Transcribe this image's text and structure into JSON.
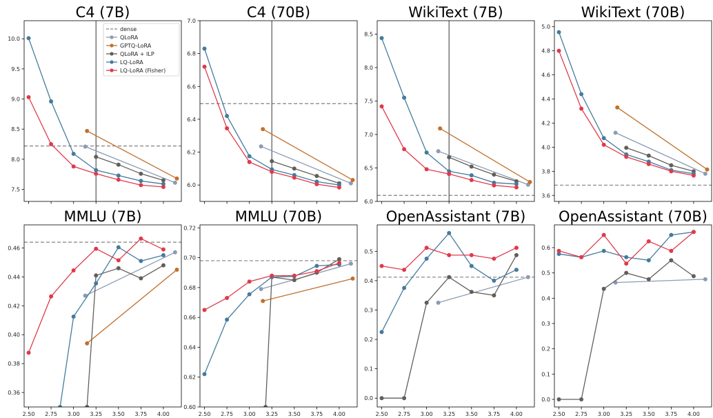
{
  "colors": {
    "dense": "#808080",
    "QLoRA": "#8b9bb4",
    "GPTQ-LoRA": "#c0712e",
    "QLoRA + ILP": "#625f5a",
    "LQ-LoRA": "#457b9d",
    "LQ-LoRA (Fisher)": "#e03a4b",
    "vline": "#555555"
  },
  "legend": [
    "dense",
    "QLoRA",
    "GPTQ-LoRA",
    "QLoRA + ILP",
    "LQ-LoRA",
    "LQ-LoRA (Fisher)"
  ],
  "x_tick_labels": [
    "2.50",
    "2.75",
    "3.00",
    "3.25",
    "3.50",
    "3.75",
    "4.00"
  ],
  "chart_data": [
    {
      "type": "line",
      "title": "C4 (7B)",
      "xlim": [
        2.45,
        4.2
      ],
      "ylim": [
        7.3,
        10.3
      ],
      "yticks": [
        7.5,
        8.0,
        8.5,
        9.0,
        9.5,
        10.0
      ],
      "ytick_labels": [
        "7.5",
        "8.0",
        "8.5",
        "9.0",
        "9.5",
        "10.0"
      ],
      "show_xticklabels": false,
      "dense": 8.22,
      "vline": 3.25,
      "legend": "top-right",
      "series": [
        {
          "name": "QLoRA",
          "x": [
            3.13,
            4.13
          ],
          "y": [
            8.21,
            7.61
          ]
        },
        {
          "name": "GPTQ-LoRA",
          "x": [
            3.15,
            4.15
          ],
          "y": [
            8.47,
            7.68
          ]
        },
        {
          "name": "QLoRA + ILP",
          "x": [
            3.25,
            3.5,
            3.75,
            4.0
          ],
          "y": [
            8.04,
            7.91,
            7.76,
            7.65
          ]
        },
        {
          "name": "LQ-LoRA",
          "x": [
            2.5,
            2.75,
            3.0,
            3.25,
            3.5,
            3.75,
            4.0
          ],
          "y": [
            10.01,
            8.96,
            8.09,
            7.82,
            7.73,
            7.64,
            7.59
          ]
        },
        {
          "name": "LQ-LoRA (Fisher)",
          "x": [
            2.5,
            2.75,
            3.0,
            3.25,
            3.5,
            3.75,
            4.0
          ],
          "y": [
            9.03,
            8.25,
            7.88,
            7.76,
            7.66,
            7.57,
            7.54
          ]
        }
      ]
    },
    {
      "type": "line",
      "title": "C4 (70B)",
      "xlim": [
        2.45,
        4.2
      ],
      "ylim": [
        5.9,
        7.0
      ],
      "yticks": [
        6.0,
        6.2,
        6.4,
        6.6,
        6.8,
        7.0
      ],
      "ytick_labels": [
        "6.0",
        "6.2",
        "6.4",
        "6.6",
        "6.8",
        "7.0"
      ],
      "show_xticklabels": false,
      "dense": 6.495,
      "vline": 3.25,
      "series": [
        {
          "name": "QLoRA",
          "x": [
            3.13,
            4.13
          ],
          "y": [
            6.235,
            6.01
          ]
        },
        {
          "name": "GPTQ-LoRA",
          "x": [
            3.15,
            4.15
          ],
          "y": [
            6.34,
            6.03
          ]
        },
        {
          "name": "QLoRA + ILP",
          "x": [
            3.25,
            3.5,
            3.75,
            4.0
          ],
          "y": [
            6.145,
            6.1,
            6.055,
            6.01
          ]
        },
        {
          "name": "LQ-LoRA",
          "x": [
            2.5,
            2.75,
            3.0,
            3.25,
            3.5,
            3.75,
            4.0
          ],
          "y": [
            6.83,
            6.42,
            6.175,
            6.095,
            6.06,
            6.02,
            6.0
          ]
        },
        {
          "name": "LQ-LoRA (Fisher)",
          "x": [
            2.5,
            2.75,
            3.0,
            3.25,
            3.5,
            3.75,
            4.0
          ],
          "y": [
            6.72,
            6.345,
            6.14,
            6.08,
            6.045,
            6.005,
            5.985
          ]
        }
      ]
    },
    {
      "type": "line",
      "title": "WikiText (7B)",
      "xlim": [
        2.45,
        4.2
      ],
      "ylim": [
        6.0,
        8.7
      ],
      "yticks": [
        6.0,
        6.5,
        7.0,
        7.5,
        8.0,
        8.5
      ],
      "ytick_labels": [
        "6.0",
        "6.5",
        "7.0",
        "7.5",
        "8.0",
        "8.5"
      ],
      "show_xticklabels": false,
      "dense": 6.09,
      "vline": 3.25,
      "series": [
        {
          "name": "QLoRA",
          "x": [
            3.13,
            4.13
          ],
          "y": [
            6.75,
            6.25
          ]
        },
        {
          "name": "GPTQ-LoRA",
          "x": [
            3.15,
            4.15
          ],
          "y": [
            7.09,
            6.29
          ]
        },
        {
          "name": "QLoRA + ILP",
          "x": [
            3.25,
            3.5,
            3.75,
            4.0
          ],
          "y": [
            6.66,
            6.52,
            6.4,
            6.3
          ]
        },
        {
          "name": "LQ-LoRA",
          "x": [
            2.5,
            2.75,
            3.0,
            3.25,
            3.5,
            3.75,
            4.0
          ],
          "y": [
            8.44,
            7.55,
            6.73,
            6.45,
            6.39,
            6.28,
            6.26
          ]
        },
        {
          "name": "LQ-LoRA (Fisher)",
          "x": [
            2.5,
            2.75,
            3.0,
            3.25,
            3.5,
            3.75,
            4.0
          ],
          "y": [
            7.42,
            6.78,
            6.48,
            6.41,
            6.32,
            6.24,
            6.21
          ]
        }
      ]
    },
    {
      "type": "line",
      "title": "WikiText (70B)",
      "xlim": [
        2.45,
        4.2
      ],
      "ylim": [
        3.55,
        5.05
      ],
      "yticks": [
        3.6,
        3.8,
        4.0,
        4.2,
        4.4,
        4.6,
        4.8,
        5.0
      ],
      "ytick_labels": [
        "3.6",
        "3.8",
        "4.0",
        "4.2",
        "4.4",
        "4.6",
        "4.8",
        "5.0"
      ],
      "show_xticklabels": false,
      "dense": 3.685,
      "vline": null,
      "series": [
        {
          "name": "QLoRA",
          "x": [
            3.13,
            4.13
          ],
          "y": [
            4.12,
            3.78
          ]
        },
        {
          "name": "GPTQ-LoRA",
          "x": [
            3.15,
            4.15
          ],
          "y": [
            4.33,
            3.815
          ]
        },
        {
          "name": "QLoRA + ILP",
          "x": [
            3.25,
            3.5,
            3.75,
            4.0
          ],
          "y": [
            3.995,
            3.93,
            3.85,
            3.8
          ]
        },
        {
          "name": "LQ-LoRA",
          "x": [
            2.5,
            2.75,
            3.0,
            3.25,
            3.5,
            3.75,
            4.0
          ],
          "y": [
            4.955,
            4.44,
            4.075,
            3.94,
            3.88,
            3.81,
            3.78
          ]
        },
        {
          "name": "LQ-LoRA (Fisher)",
          "x": [
            2.5,
            2.75,
            3.0,
            3.25,
            3.5,
            3.75,
            4.0
          ],
          "y": [
            4.8,
            4.32,
            4.02,
            3.92,
            3.86,
            3.8,
            3.765
          ]
        }
      ]
    },
    {
      "type": "line",
      "title": "MMLU (7B)",
      "xlim": [
        2.45,
        4.2
      ],
      "ylim": [
        0.35,
        0.476
      ],
      "yticks": [
        0.36,
        0.38,
        0.4,
        0.42,
        0.44,
        0.46
      ],
      "ytick_labels": [
        "0.36",
        "0.38",
        "0.40",
        "0.42",
        "0.44",
        "0.46"
      ],
      "show_xticklabels": true,
      "dense": 0.464,
      "vline": null,
      "series": [
        {
          "name": "QLoRA",
          "x": [
            3.13,
            4.13
          ],
          "y": [
            0.427,
            0.457
          ]
        },
        {
          "name": "GPTQ-LoRA",
          "x": [
            3.15,
            4.15
          ],
          "y": [
            0.394,
            0.445
          ]
        },
        {
          "name": "QLoRA + ILP",
          "x": [
            3.15,
            3.25,
            3.5,
            3.75,
            4.0
          ],
          "y": [
            0.35,
            0.441,
            0.446,
            0.439,
            0.448
          ]
        },
        {
          "name": "LQ-LoRA",
          "x": [
            2.85,
            3.0,
            3.25,
            3.5,
            3.75,
            4.0
          ],
          "y": [
            0.35,
            0.4125,
            0.4355,
            0.4605,
            0.451,
            0.455
          ]
        },
        {
          "name": "LQ-LoRA (Fisher)",
          "x": [
            2.5,
            2.75,
            3.0,
            3.25,
            3.5,
            3.75,
            4.0
          ],
          "y": [
            0.3875,
            0.4265,
            0.4445,
            0.4595,
            0.4515,
            0.4665,
            0.459
          ]
        }
      ]
    },
    {
      "type": "line",
      "title": "MMLU (70B)",
      "xlim": [
        2.45,
        4.2
      ],
      "ylim": [
        0.6,
        0.722
      ],
      "yticks": [
        0.6,
        0.62,
        0.64,
        0.66,
        0.68,
        0.7,
        0.72
      ],
      "ytick_labels": [
        "0.60",
        "0.62",
        "0.64",
        "0.66",
        "0.68",
        "0.70",
        "0.72"
      ],
      "show_xticklabels": true,
      "dense": 0.698,
      "vline": null,
      "series": [
        {
          "name": "QLoRA",
          "x": [
            3.13,
            4.13
          ],
          "y": [
            0.679,
            0.696
          ]
        },
        {
          "name": "GPTQ-LoRA",
          "x": [
            3.15,
            4.15
          ],
          "y": [
            0.671,
            0.686
          ]
        },
        {
          "name": "QLoRA + ILP",
          "x": [
            3.18,
            3.25,
            3.5,
            3.75,
            4.0
          ],
          "y": [
            0.6,
            0.687,
            0.685,
            0.69,
            0.699
          ]
        },
        {
          "name": "LQ-LoRA",
          "x": [
            2.5,
            2.75,
            3.0,
            3.25,
            3.5,
            3.75,
            4.0
          ],
          "y": [
            0.622,
            0.6585,
            0.6755,
            0.687,
            0.6875,
            0.6945,
            0.6955
          ]
        },
        {
          "name": "LQ-LoRA (Fisher)",
          "x": [
            2.5,
            2.75,
            3.0,
            3.25,
            3.5,
            3.75,
            4.0
          ],
          "y": [
            0.665,
            0.673,
            0.684,
            0.688,
            0.688,
            0.691,
            0.6965
          ]
        }
      ]
    },
    {
      "type": "line",
      "title": "OpenAssistant (7B)",
      "xlim": [
        2.45,
        4.2
      ],
      "ylim": [
        -0.03,
        0.59
      ],
      "yticks": [
        0.0,
        0.1,
        0.2,
        0.3,
        0.4,
        0.5
      ],
      "ytick_labels": [
        "0.0",
        "0.1",
        "0.2",
        "0.3",
        "0.4",
        "0.5"
      ],
      "show_xticklabels": true,
      "dense": 0.412,
      "vline": null,
      "series": [
        {
          "name": "QLoRA",
          "x": [
            3.13,
            4.13
          ],
          "y": [
            0.325,
            0.412
          ]
        },
        {
          "name": "QLoRA + ILP",
          "x": [
            2.5,
            2.75,
            3.0,
            3.25,
            3.5,
            3.75,
            4.0
          ],
          "y": [
            0.0,
            0.0,
            0.325,
            0.412,
            0.362,
            0.35,
            0.487
          ]
        },
        {
          "name": "LQ-LoRA",
          "x": [
            2.5,
            2.75,
            3.0,
            3.25,
            3.5,
            3.75,
            4.0
          ],
          "y": [
            0.225,
            0.375,
            0.475,
            0.562,
            0.45,
            0.4,
            0.437
          ]
        },
        {
          "name": "LQ-LoRA (Fisher)",
          "x": [
            2.5,
            2.75,
            3.0,
            3.25,
            3.5,
            3.75,
            4.0
          ],
          "y": [
            0.45,
            0.437,
            0.512,
            0.487,
            0.487,
            0.475,
            0.512
          ]
        }
      ]
    },
    {
      "type": "line",
      "title": "OpenAssistant (70B)",
      "xlim": [
        2.45,
        4.2
      ],
      "ylim": [
        -0.03,
        0.69
      ],
      "yticks": [
        0.0,
        0.1,
        0.2,
        0.3,
        0.4,
        0.5,
        0.6
      ],
      "ytick_labels": [
        "0.0",
        "0.1",
        "0.2",
        "0.3",
        "0.4",
        "0.5",
        "0.6"
      ],
      "show_xticklabels": true,
      "dense": null,
      "vline": null,
      "series": [
        {
          "name": "QLoRA",
          "x": [
            3.13,
            4.13
          ],
          "y": [
            0.462,
            0.475
          ]
        },
        {
          "name": "QLoRA + ILP",
          "x": [
            2.5,
            2.75,
            3.0,
            3.25,
            3.5,
            3.75,
            4.0
          ],
          "y": [
            0.0,
            0.0,
            0.437,
            0.5,
            0.475,
            0.55,
            0.487
          ]
        },
        {
          "name": "LQ-LoRA",
          "x": [
            2.5,
            2.75,
            3.0,
            3.25,
            3.5,
            3.75,
            4.0
          ],
          "y": [
            0.575,
            0.562,
            0.587,
            0.562,
            0.55,
            0.65,
            0.662
          ]
        },
        {
          "name": "LQ-LoRA (Fisher)",
          "x": [
            2.5,
            2.75,
            3.0,
            3.25,
            3.5,
            3.75,
            4.0
          ],
          "y": [
            0.587,
            0.562,
            0.65,
            0.537,
            0.625,
            0.587,
            0.662
          ]
        }
      ]
    }
  ]
}
